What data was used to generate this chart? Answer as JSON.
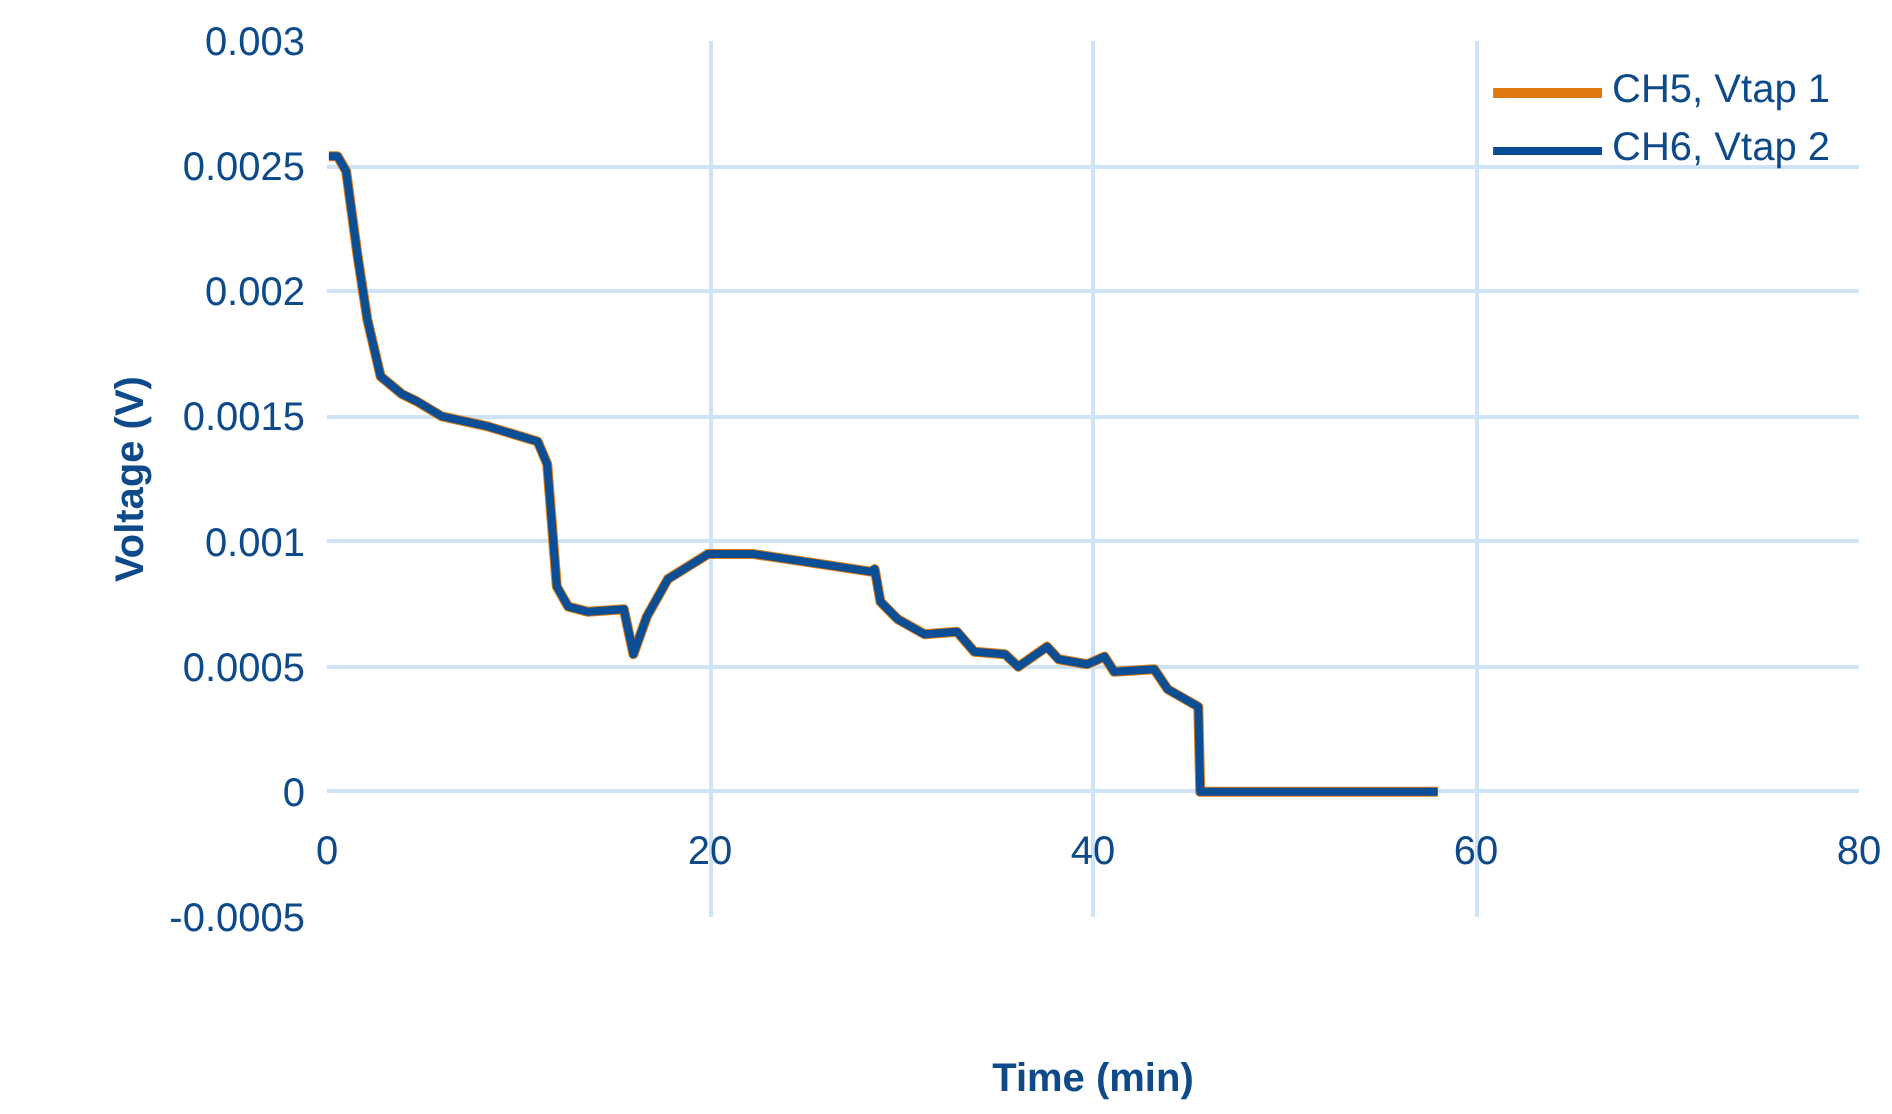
{
  "chart_data": {
    "type": "line",
    "xlabel": "Time (min)",
    "ylabel": "Voltage (V)",
    "xlim": [
      0,
      80
    ],
    "xticks": [
      0,
      20,
      40,
      60,
      80
    ],
    "ylim": [
      -0.0005,
      0.003
    ],
    "yticks": [
      -0.0005,
      0,
      0.0005,
      0.001,
      0.0015,
      0.002,
      0.0025,
      0.003
    ],
    "grid": true,
    "legend": "top right",
    "marker": "none",
    "line_style": "solid",
    "x": [
      0.1,
      0.55,
      1.0,
      1.6,
      2.1,
      2.8,
      3.9,
      4.7,
      6.0,
      8.4,
      11.0,
      11.5,
      12.0,
      12.6,
      13.6,
      15.5,
      16.0,
      16.7,
      17.8,
      19.9,
      22.3,
      28.4,
      28.6,
      28.9,
      29.8,
      31.2,
      32.9,
      33.8,
      35.4,
      36.1,
      37.6,
      38.2,
      39.7,
      40.6,
      41.1,
      43.2,
      43.9,
      45.5,
      45.6,
      58.0
    ],
    "series": [
      {
        "name": "CH5, Vtap 1",
        "color": "#e07a10",
        "values": [
          0.00254,
          0.00254,
          0.00248,
          0.00214,
          0.00189,
          0.00166,
          0.00159,
          0.00156,
          0.0015,
          0.00146,
          0.0014,
          0.00131,
          0.00082,
          0.00074,
          0.00072,
          0.00073,
          0.00055,
          0.0007,
          0.00085,
          0.00095,
          0.00095,
          0.00088,
          0.00089,
          0.00076,
          0.00069,
          0.00063,
          0.00064,
          0.00056,
          0.00055,
          0.0005,
          0.00058,
          0.00053,
          0.00051,
          0.00054,
          0.00048,
          0.00049,
          0.00041,
          0.00034,
          0,
          0
        ]
      },
      {
        "name": "CH6, Vtap 2",
        "color": "#0a4f96",
        "values": [
          0.00254,
          0.00254,
          0.00248,
          0.00214,
          0.00189,
          0.00166,
          0.00159,
          0.00156,
          0.0015,
          0.00146,
          0.0014,
          0.00131,
          0.00082,
          0.00074,
          0.00072,
          0.00073,
          0.00055,
          0.0007,
          0.00085,
          0.00095,
          0.00095,
          0.00088,
          0.00089,
          0.00076,
          0.00069,
          0.00063,
          0.00064,
          0.00056,
          0.00055,
          0.0005,
          0.00058,
          0.00053,
          0.00051,
          0.00054,
          0.00048,
          0.00049,
          0.00041,
          0.00034,
          0,
          0
        ]
      }
    ]
  }
}
